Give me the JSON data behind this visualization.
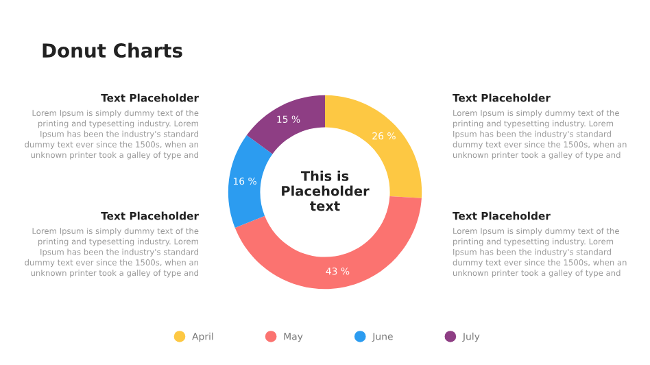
{
  "chart_data": {
    "type": "donut",
    "title": "Donut Charts",
    "categories": [
      "April",
      "May",
      "June",
      "July"
    ],
    "values": [
      26,
      43,
      16,
      15
    ],
    "value_labels": [
      "26 %",
      "43 %",
      "16 %",
      "15 %"
    ],
    "colors": [
      "#fdc843",
      "#fb7370",
      "#2c9cf0",
      "#8e3e84"
    ],
    "legend": "bottom",
    "annotations": [
      "This is Placeholder text",
      "Text Placeholder",
      "Lorem Ipsum is simply dummy text of the printing and typesetting industry. Lorem Ipsum has been the industry's standard dummy text ever since the 1500s, when an unknown printer took a galley of type and",
      "Text Placeholder",
      "Lorem Ipsum is simply dummy text of the printing and typesetting industry. Lorem Ipsum has been the industry's standard dummy text ever since the 1500s, when an unknown printer took a galley of type and",
      "Text Placeholder",
      "Lorem Ipsum is simply dummy text of the printing and typesetting industry. Lorem Ipsum has been the industry's standard dummy text ever since the 1500s, when an unknown printer took a galley of type and",
      "Text Placeholder",
      "Lorem Ipsum is simply dummy text of the printing and typesetting industry. Lorem Ipsum has been the industry's standard dummy text ever since the 1500s, when an unknown printer took a galley of type and"
    ]
  }
}
